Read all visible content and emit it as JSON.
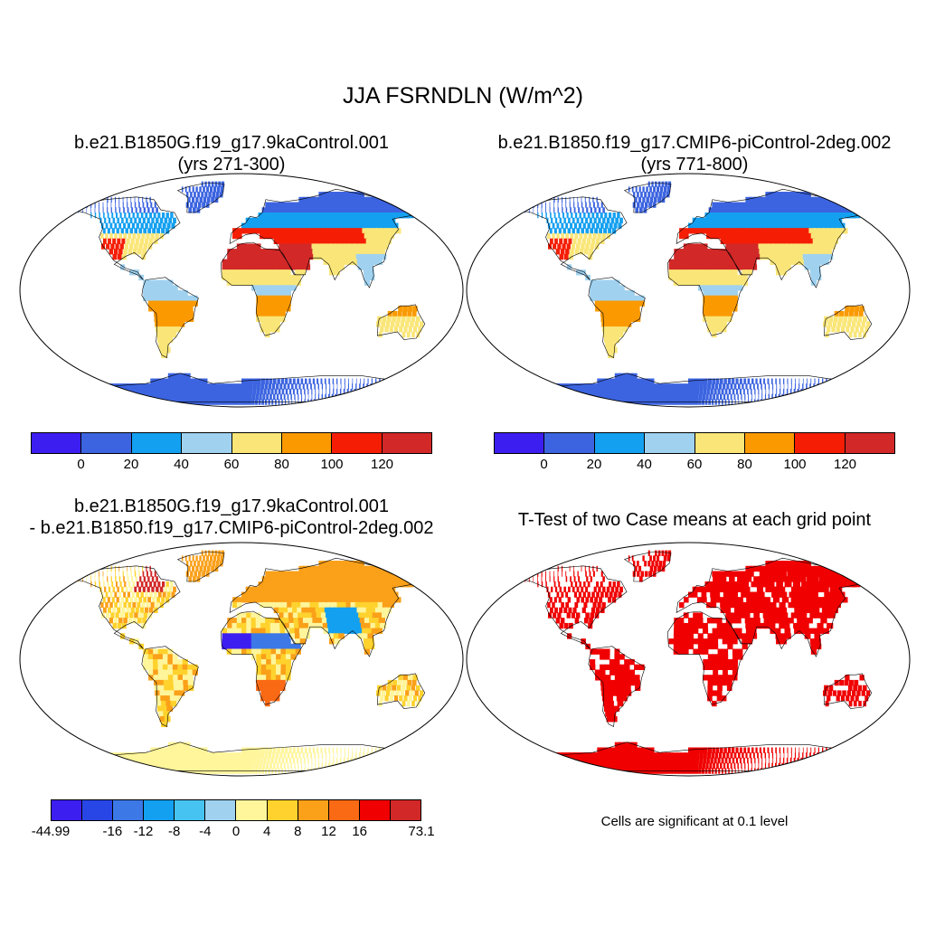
{
  "main_title": "JJA FSRNDLN (W/m^2)",
  "panels": {
    "top_left": {
      "line1": "b.e21.B1850G.f19_g17.9kaControl.001",
      "line2": "(yrs 271-300)"
    },
    "top_right": {
      "line1": "b.e21.B1850.f19_g17.CMIP6-piControl-2deg.002",
      "line2": "(yrs 771-800)"
    },
    "bottom_left": {
      "line1": "b.e21.B1850G.f19_g17.9kaControl.001",
      "line2": "- b.e21.B1850.f19_g17.CMIP6-piControl-2deg.002"
    },
    "bottom_right": {
      "line1": "T-Test of two Case means at each grid point",
      "note": "Cells are significant at 0.1 level"
    }
  },
  "colorbar_abs": {
    "colors": [
      "#3c1ef0",
      "#3c64e0",
      "#14a0f0",
      "#a0d2f0",
      "#fae678",
      "#fa9a00",
      "#f51e05",
      "#d22828"
    ],
    "labels": [
      "0",
      "20",
      "40",
      "60",
      "80",
      "100",
      "120"
    ]
  },
  "colorbar_diff": {
    "colors": [
      "#3c1ef0",
      "#2846e6",
      "#3c78e6",
      "#14a0f0",
      "#46c3f0",
      "#a0d2f0",
      "#fff59b",
      "#ffd22d",
      "#faa019",
      "#fa6914",
      "#f00000",
      "#d22828"
    ],
    "labels": [
      "-44.99",
      "-16",
      "-12",
      "-8",
      "-4",
      "0",
      "4",
      "8",
      "12",
      "16",
      "73.1"
    ]
  },
  "significance_color": "#f00000",
  "ocean_color": "#ffffff"
}
